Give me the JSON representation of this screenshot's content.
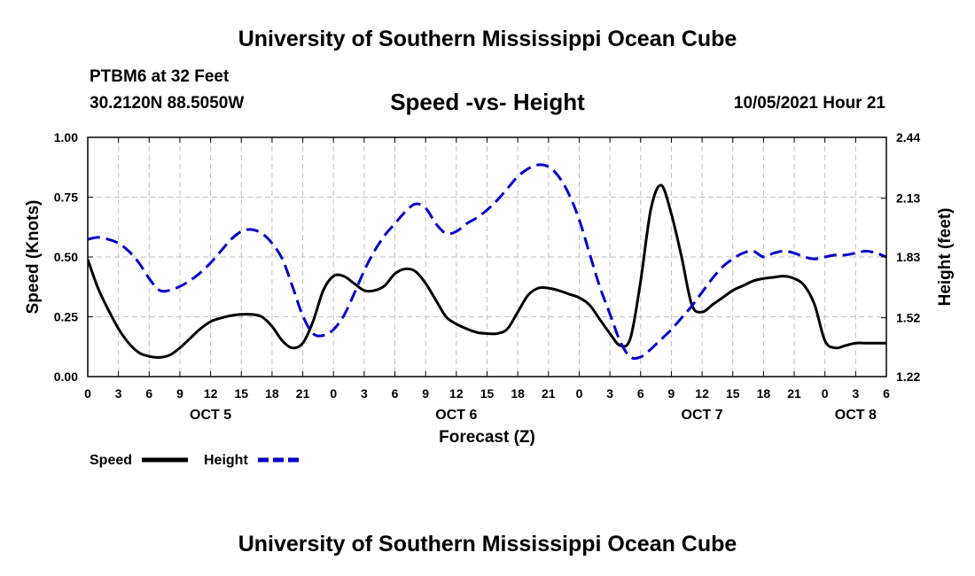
{
  "header": {
    "title": "University of Southern Mississippi Ocean Cube",
    "station": "PTBM6 at 32 Feet",
    "coords": "30.2120N  88.5050W",
    "chart_title": "Speed -vs- Height",
    "datetime": "10/05/2021 Hour 21"
  },
  "footer": {
    "title": "University of Southern Mississippi Ocean Cube"
  },
  "colors": {
    "speed": "#000000",
    "height": "#0000cc",
    "grid": "#c0c0c0"
  },
  "chart_data": {
    "type": "line",
    "title": "Speed -vs- Height",
    "xlabel": "Forecast (Z)",
    "ylabel": "Speed (Knots)",
    "y2label": "Height (feet)",
    "xlim": [
      0,
      78
    ],
    "ylim": [
      0,
      1
    ],
    "y2lim": [
      1.22,
      2.44
    ],
    "grid": true,
    "x_ticks": [
      0,
      3,
      6,
      9,
      12,
      15,
      18,
      21,
      24,
      27,
      30,
      33,
      36,
      39,
      42,
      45,
      48,
      51,
      54,
      57,
      60,
      63,
      66,
      69,
      72,
      75,
      78
    ],
    "x_tick_labels": [
      "0",
      "3",
      "6",
      "9",
      "12",
      "15",
      "18",
      "21",
      "0",
      "3",
      "6",
      "9",
      "12",
      "15",
      "18",
      "21",
      "0",
      "3",
      "6",
      "9",
      "12",
      "15",
      "18",
      "21",
      "0",
      "3",
      "6"
    ],
    "day_labels": [
      {
        "x": 12,
        "label": "OCT 5"
      },
      {
        "x": 36,
        "label": "OCT 6"
      },
      {
        "x": 60,
        "label": "OCT 7"
      },
      {
        "x": 75,
        "label": "OCT 8"
      }
    ],
    "y_ticks": [
      "0.00",
      "0.25",
      "0.50",
      "0.75",
      "1.00"
    ],
    "y_tick_values": [
      0,
      0.25,
      0.5,
      0.75,
      1.0
    ],
    "y2_ticks": [
      "1.22",
      "1.52",
      "1.83",
      "2.13",
      "2.44"
    ],
    "y2_tick_values": [
      1.22,
      1.52,
      1.83,
      2.13,
      2.44
    ],
    "legend": {
      "position": "bottom-left",
      "speed_label": "Speed",
      "height_label": "Height"
    },
    "series": [
      {
        "name": "Speed",
        "axis": "left",
        "style": "solid",
        "x": [
          0,
          1,
          2,
          3,
          4,
          5,
          6,
          7,
          8,
          9,
          10,
          11,
          12,
          13,
          14,
          15,
          16,
          17,
          18,
          19,
          20,
          21,
          22,
          23,
          24,
          25,
          26,
          27,
          28,
          29,
          30,
          31,
          32,
          33,
          34,
          35,
          36,
          37,
          38,
          39,
          40,
          41,
          42,
          43,
          44,
          45,
          46,
          47,
          48,
          49,
          50,
          51,
          52,
          53,
          54,
          55,
          56,
          57,
          58,
          59,
          60,
          61,
          62,
          63,
          64,
          65,
          66,
          67,
          68,
          69,
          70,
          71,
          72,
          73,
          74,
          75,
          76,
          77,
          78
        ],
        "values": [
          0.49,
          0.37,
          0.28,
          0.2,
          0.14,
          0.1,
          0.085,
          0.08,
          0.09,
          0.12,
          0.16,
          0.2,
          0.23,
          0.245,
          0.255,
          0.26,
          0.26,
          0.25,
          0.21,
          0.15,
          0.12,
          0.14,
          0.23,
          0.36,
          0.42,
          0.42,
          0.39,
          0.36,
          0.36,
          0.38,
          0.43,
          0.45,
          0.44,
          0.39,
          0.32,
          0.25,
          0.22,
          0.2,
          0.185,
          0.18,
          0.18,
          0.2,
          0.27,
          0.34,
          0.37,
          0.37,
          0.36,
          0.345,
          0.33,
          0.3,
          0.24,
          0.18,
          0.13,
          0.16,
          0.4,
          0.7,
          0.8,
          0.68,
          0.5,
          0.3,
          0.27,
          0.3,
          0.33,
          0.36,
          0.38,
          0.4,
          0.41,
          0.415,
          0.42,
          0.41,
          0.38,
          0.3,
          0.15,
          0.12,
          0.13,
          0.14,
          0.14,
          0.14,
          0.14
        ]
      },
      {
        "name": "Height",
        "axis": "right",
        "style": "dashed",
        "x": [
          0,
          1,
          2,
          3,
          4,
          5,
          6,
          7,
          8,
          9,
          10,
          11,
          12,
          13,
          14,
          15,
          16,
          17,
          18,
          19,
          20,
          21,
          22,
          23,
          24,
          25,
          26,
          27,
          28,
          29,
          30,
          31,
          32,
          33,
          34,
          35,
          36,
          37,
          38,
          39,
          40,
          41,
          42,
          43,
          44,
          45,
          46,
          47,
          48,
          49,
          50,
          51,
          52,
          53,
          54,
          55,
          56,
          57,
          58,
          59,
          60,
          61,
          62,
          63,
          64,
          65,
          66,
          67,
          68,
          69,
          70,
          71,
          72,
          73,
          74,
          75,
          76,
          77,
          78
        ],
        "values": [
          1.92,
          1.93,
          1.92,
          1.9,
          1.86,
          1.8,
          1.72,
          1.66,
          1.66,
          1.68,
          1.71,
          1.75,
          1.8,
          1.86,
          1.92,
          1.96,
          1.97,
          1.95,
          1.9,
          1.82,
          1.68,
          1.53,
          1.44,
          1.43,
          1.46,
          1.53,
          1.64,
          1.76,
          1.86,
          1.94,
          2.0,
          2.06,
          2.1,
          2.08,
          2.0,
          1.95,
          1.96,
          2.0,
          2.03,
          2.07,
          2.12,
          2.18,
          2.24,
          2.28,
          2.3,
          2.29,
          2.24,
          2.15,
          2.02,
          1.85,
          1.68,
          1.54,
          1.4,
          1.32,
          1.32,
          1.36,
          1.41,
          1.46,
          1.52,
          1.58,
          1.65,
          1.72,
          1.78,
          1.82,
          1.85,
          1.86,
          1.83,
          1.85,
          1.86,
          1.85,
          1.83,
          1.82,
          1.83,
          1.84,
          1.84,
          1.85,
          1.86,
          1.85,
          1.83
        ]
      }
    ]
  }
}
